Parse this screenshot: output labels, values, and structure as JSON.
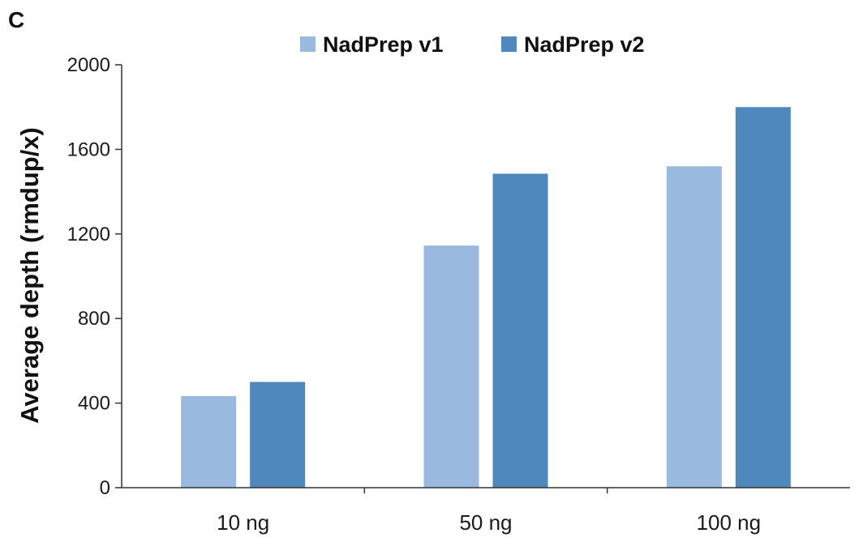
{
  "panel_letter": "C",
  "chart_data": {
    "type": "bar",
    "title": "",
    "xlabel": "",
    "ylabel": "Average depth (rmdup/x)",
    "categories": [
      "10 ng",
      "50 ng",
      "100 ng"
    ],
    "series": [
      {
        "name": "NadPrep v1",
        "values": [
          433,
          1145,
          1520
        ],
        "color": "#9ab9df"
      },
      {
        "name": "NadPrep v2",
        "values": [
          500,
          1485,
          1800
        ],
        "color": "#4e88bd"
      }
    ],
    "ylim": [
      0,
      2000
    ],
    "yticks": [
      0,
      400,
      800,
      1200,
      1600,
      2000
    ],
    "grid": false,
    "legend_position": "top-center"
  }
}
